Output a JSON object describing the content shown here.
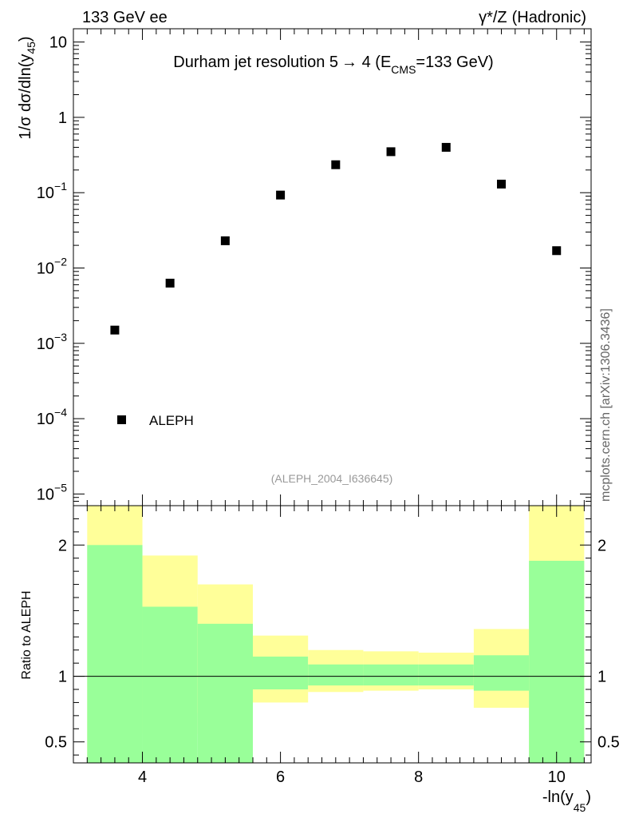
{
  "header": {
    "left": "133 GeV ee",
    "right_prefix": "γ*/Z",
    "right_suffix": "(Hadronic)"
  },
  "side_label": "mcplots.cern.ch [arXiv:1306.3436]",
  "colors": {
    "green": "#99ff99",
    "yellow": "#ffff99",
    "marker": "#000000",
    "analysis_text": "#999999"
  },
  "chart_data": [
    {
      "type": "scatter",
      "panel": "main",
      "title": {
        "prefix": "Durham jet resolution 5",
        "arrow": "→",
        "middle": " 4 (E",
        "sub": "CMS",
        "suffix": "=133 GeV)"
      },
      "ylabel": {
        "prefix": "1/σ  dσ/dln(y",
        "sub": "45",
        "suffix": ")"
      },
      "yscale": "log",
      "ylim": [
        7e-06,
        15
      ],
      "xlim": [
        3.0,
        10.5
      ],
      "y_ticks": [
        {
          "value": 10,
          "label": "10"
        },
        {
          "value": 1,
          "label": "1"
        },
        {
          "value": 0.1,
          "base": "10",
          "exp": "−1"
        },
        {
          "value": 0.01,
          "base": "10",
          "exp": "−2"
        },
        {
          "value": 0.001,
          "base": "10",
          "exp": "−3"
        },
        {
          "value": 0.0001,
          "base": "10",
          "exp": "−4"
        },
        {
          "value": 1e-05,
          "base": "10",
          "exp": "−5"
        }
      ],
      "legend": {
        "label": "ALEPH",
        "position": "bottom-left"
      },
      "analysis": "(ALEPH_2004_I636645)",
      "series": [
        {
          "name": "ALEPH",
          "x": [
            3.6,
            4.4,
            5.2,
            6.0,
            6.8,
            7.6,
            8.4,
            9.2,
            10.0
          ],
          "values": [
            0.0015,
            0.0063,
            0.023,
            0.093,
            0.235,
            0.35,
            0.4,
            0.13,
            0.017
          ]
        }
      ]
    },
    {
      "type": "area",
      "panel": "ratio",
      "ylabel": "Ratio to ALEPH",
      "xlabel": {
        "prefix": "-ln(y",
        "sub": "45",
        "suffix": ")"
      },
      "xlim": [
        3.0,
        10.5
      ],
      "ylim": [
        0.34,
        2.3
      ],
      "x_ticks": [
        4,
        6,
        8,
        10
      ],
      "y_ticks": [
        {
          "value": 2,
          "label": "2"
        },
        {
          "value": 1,
          "label": "1"
        },
        {
          "value": 0.5,
          "label": "0.5"
        }
      ],
      "bins": {
        "edges": [
          3.2,
          4.0,
          4.8,
          5.6,
          6.4,
          7.2,
          8.0,
          8.8,
          9.6,
          10.4
        ],
        "stat_up": [
          2.0,
          1.53,
          1.4,
          1.15,
          1.09,
          1.09,
          1.09,
          1.16,
          1.88
        ],
        "stat_down": [
          0.0,
          0.0,
          0.0,
          0.9,
          0.93,
          0.93,
          0.93,
          0.89,
          0.0
        ],
        "total_up": [
          2.3,
          1.92,
          1.7,
          1.31,
          1.2,
          1.19,
          1.18,
          1.36,
          2.3
        ],
        "total_down": [
          0.0,
          0.56,
          0.72,
          0.8,
          0.88,
          0.89,
          0.9,
          0.76,
          0.0
        ]
      },
      "reference_line": 1
    }
  ]
}
